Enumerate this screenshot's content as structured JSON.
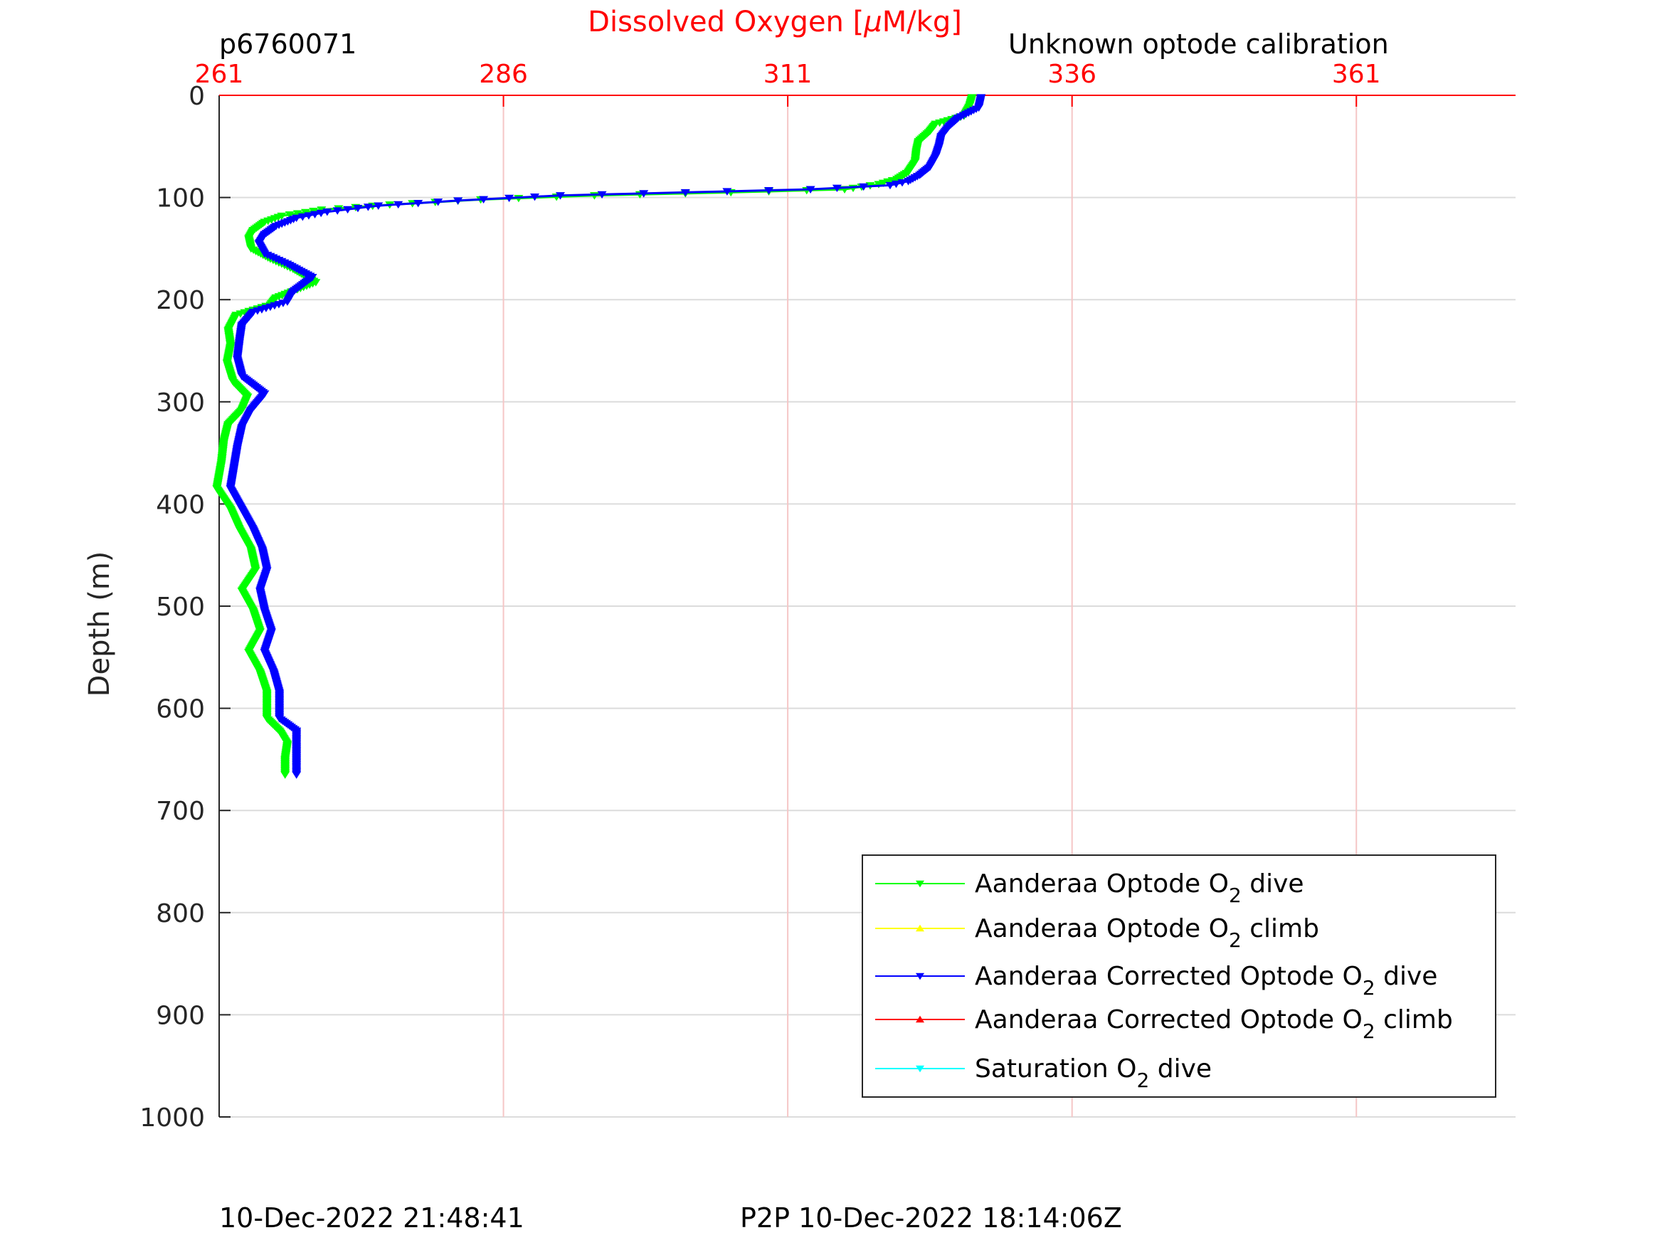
{
  "header": {
    "profile_id": "p6760071",
    "calibration_note": "Unknown optode calibration"
  },
  "footer": {
    "timestamp": "10-Dec-2022 21:48:41",
    "p2p": "P2P 10-Dec-2022 18:14:06Z"
  },
  "colors": {
    "oxygen_axis": "#ff0000",
    "optode_dive": "#00ff00",
    "optode_climb": "#ffff00",
    "corrected_dive": "#0000ff",
    "corrected_climb": "#ff0000",
    "saturation_dive": "#00ffff",
    "grid": "#dcdcdc",
    "oxygen_grid": "#f5c6c6"
  },
  "chart_data": {
    "type": "line",
    "title": "Dissolved Oxygen [μM/kg]",
    "x_axis": {
      "label_prefix": "Dissolved Oxygen [",
      "label_mu": "μ",
      "label_suffix": "M/kg]",
      "range": [
        261,
        375
      ],
      "ticks": [
        261,
        286,
        311,
        336,
        361
      ],
      "tick_labels": [
        "261",
        "286",
        "311",
        "336",
        "361"
      ],
      "position": "top"
    },
    "y_axis": {
      "label": "Depth (m)",
      "range": [
        0,
        1000
      ],
      "reversed": true,
      "ticks": [
        0,
        100,
        200,
        300,
        400,
        500,
        600,
        700,
        800,
        900,
        1000
      ],
      "tick_labels": [
        "0",
        "100",
        "200",
        "300",
        "400",
        "500",
        "600",
        "700",
        "800",
        "900",
        "1000"
      ]
    },
    "grid": true,
    "legend": {
      "placement": "bottom-right",
      "entries": [
        {
          "prefix": "Aanderaa Optode O",
          "sub": "2",
          "suffix": " dive",
          "color": "#00ff00",
          "marker": "down"
        },
        {
          "prefix": "Aanderaa Optode O",
          "sub": "2",
          "suffix": " climb",
          "color": "#ffff00",
          "marker": "up"
        },
        {
          "prefix": "Aanderaa Corrected Optode O",
          "sub": "2",
          "suffix": " dive",
          "color": "#0000ff",
          "marker": "down"
        },
        {
          "prefix": "Aanderaa Corrected Optode O",
          "sub": "2",
          "suffix": " climb",
          "color": "#ff0000",
          "marker": "up"
        },
        {
          "prefix": "Saturation O",
          "sub": "2",
          "suffix": " dive",
          "color": "#00ffff",
          "marker": "down"
        }
      ]
    },
    "series": [
      {
        "name": "Aanderaa Optode O2 dive",
        "color": "#00ff00",
        "points": [
          [
            327.2,
            2
          ],
          [
            327.0,
            10
          ],
          [
            326.5,
            20
          ],
          [
            324.0,
            28
          ],
          [
            323.5,
            35
          ],
          [
            322.5,
            45
          ],
          [
            322.3,
            55
          ],
          [
            322.2,
            65
          ],
          [
            321.6,
            75
          ],
          [
            320.6,
            82
          ],
          [
            319.0,
            87
          ],
          [
            316.0,
            92
          ],
          [
            306.0,
            95
          ],
          [
            294.0,
            98
          ],
          [
            284.0,
            102
          ],
          [
            276.0,
            107
          ],
          [
            270.0,
            112
          ],
          [
            266.5,
            118
          ],
          [
            265.0,
            124
          ],
          [
            264.0,
            132
          ],
          [
            263.6,
            140
          ],
          [
            263.8,
            150
          ],
          [
            265.5,
            160
          ],
          [
            267.5,
            170
          ],
          [
            269.5,
            183
          ],
          [
            266.0,
            198
          ],
          [
            265.5,
            205
          ],
          [
            262.5,
            215
          ],
          [
            261.8,
            230
          ],
          [
            262.0,
            245
          ],
          [
            261.7,
            262
          ],
          [
            262.2,
            280
          ],
          [
            263.5,
            295
          ],
          [
            263.0,
            308
          ],
          [
            261.8,
            322
          ],
          [
            261.4,
            340
          ],
          [
            261.2,
            360
          ],
          [
            260.8,
            385
          ],
          [
            262.0,
            405
          ],
          [
            262.8,
            425
          ],
          [
            263.8,
            445
          ],
          [
            264.2,
            465
          ],
          [
            263.0,
            485
          ],
          [
            264.0,
            505
          ],
          [
            264.6,
            525
          ],
          [
            263.6,
            545
          ],
          [
            264.6,
            565
          ],
          [
            265.2,
            585
          ],
          [
            265.2,
            610
          ],
          [
            266.3,
            622
          ],
          [
            267.0,
            635
          ],
          [
            266.8,
            650
          ],
          [
            266.8,
            665
          ]
        ]
      },
      {
        "name": "Aanderaa Corrected Optode O2 dive",
        "color": "#0000ff",
        "points": [
          [
            328.0,
            2
          ],
          [
            327.8,
            12
          ],
          [
            326.0,
            22
          ],
          [
            325.2,
            30
          ],
          [
            324.5,
            40
          ],
          [
            324.3,
            50
          ],
          [
            324.0,
            60
          ],
          [
            323.5,
            70
          ],
          [
            322.6,
            78
          ],
          [
            321.6,
            84
          ],
          [
            320.0,
            88
          ],
          [
            313.0,
            92
          ],
          [
            302.0,
            95
          ],
          [
            291.0,
            98
          ],
          [
            282.0,
            103
          ],
          [
            275.0,
            108
          ],
          [
            270.5,
            114
          ],
          [
            267.8,
            120
          ],
          [
            266.0,
            128
          ],
          [
            265.0,
            136
          ],
          [
            264.5,
            145
          ],
          [
            265.0,
            155
          ],
          [
            267.0,
            165
          ],
          [
            269.2,
            178
          ],
          [
            267.5,
            192
          ],
          [
            267.0,
            202
          ],
          [
            264.0,
            212
          ],
          [
            263.0,
            225
          ],
          [
            262.8,
            240
          ],
          [
            262.6,
            258
          ],
          [
            263.0,
            275
          ],
          [
            265.0,
            292
          ],
          [
            263.8,
            308
          ],
          [
            263.0,
            325
          ],
          [
            262.6,
            345
          ],
          [
            262.3,
            365
          ],
          [
            262.0,
            385
          ],
          [
            263.0,
            405
          ],
          [
            264.0,
            425
          ],
          [
            264.8,
            445
          ],
          [
            265.2,
            465
          ],
          [
            264.6,
            485
          ],
          [
            265.0,
            505
          ],
          [
            265.6,
            525
          ],
          [
            265.0,
            545
          ],
          [
            265.8,
            565
          ],
          [
            266.3,
            585
          ],
          [
            266.3,
            610
          ],
          [
            267.8,
            622
          ],
          [
            267.8,
            640
          ],
          [
            267.8,
            655
          ],
          [
            267.8,
            665
          ]
        ]
      }
    ]
  }
}
